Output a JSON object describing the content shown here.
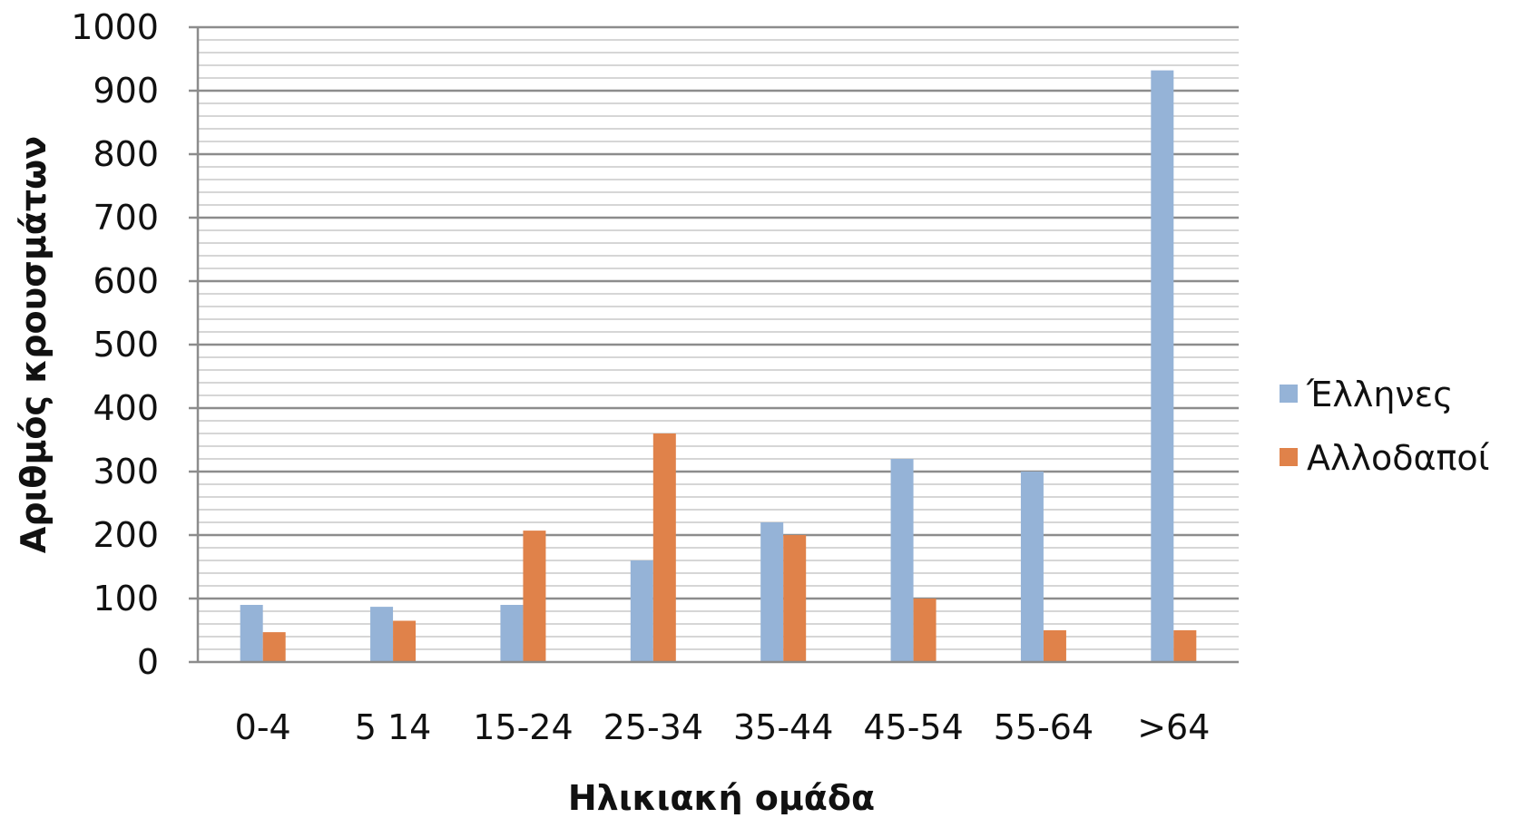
{
  "chart_data": {
    "type": "bar",
    "title": "",
    "xlabel": "Ηλικιακή ομάδα",
    "ylabel": "Αριθμός κρουσμάτων",
    "categories": [
      "0-4",
      "5  14",
      "15-24",
      "25-34",
      "35-44",
      "45-54",
      "55-64",
      ">64"
    ],
    "series": [
      {
        "name": "Έλληνες",
        "color": "#95b3d7",
        "values": [
          90,
          87,
          90,
          160,
          220,
          320,
          300,
          932
        ]
      },
      {
        "name": "Αλλοδαποί",
        "color": "#e0824a",
        "values": [
          47,
          65,
          207,
          360,
          200,
          100,
          50,
          50
        ]
      }
    ],
    "ylim": [
      0,
      1000
    ],
    "yticks": [
      0,
      100,
      200,
      300,
      400,
      500,
      600,
      700,
      800,
      900,
      1000
    ],
    "minor_grid_step": 20,
    "grid": true,
    "legend_position": "right"
  }
}
